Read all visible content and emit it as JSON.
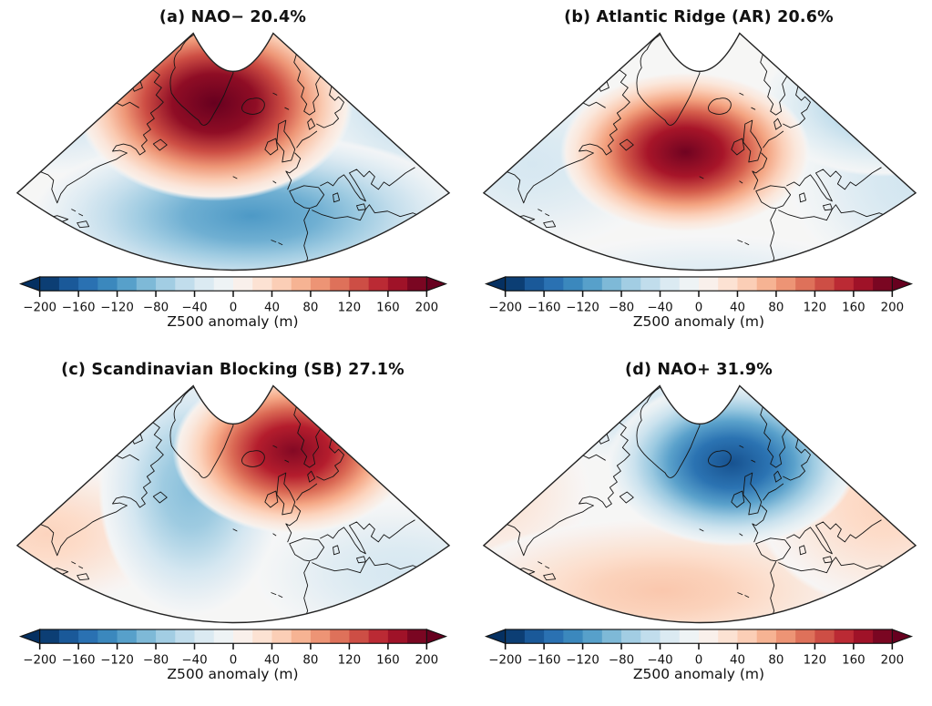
{
  "figure": {
    "background": "#ffffff",
    "colorbar": {
      "label": "Z500 anomaly (m)",
      "range": [
        -200,
        200
      ],
      "n_segments": 20,
      "extend": "both",
      "tick_labels": [
        "−200",
        "−160",
        "−120",
        "−80",
        "−40",
        "0",
        "40",
        "80",
        "120",
        "160",
        "200"
      ],
      "anchor_values": [
        -200,
        -160,
        -120,
        -80,
        -40,
        0,
        40,
        80,
        120,
        160,
        200
      ],
      "anchor_colors": [
        "#053061",
        "#2166ac",
        "#4393c3",
        "#92c5de",
        "#d1e5f0",
        "#f7f7f7",
        "#fddbc7",
        "#f4a582",
        "#d6604d",
        "#b2182b",
        "#67001f"
      ],
      "outline_color": "#111111"
    }
  },
  "chart_data": {
    "type": "heatmap",
    "subtype": "filled-contour map composites, 2x2 grid",
    "field": "Z500 anomaly",
    "units": "m",
    "colormap": "RdBu_r (blue = negative, red = positive)",
    "region": "North Atlantic / Europe conic wedge (E. North America, Greenland, Iceland, Europe, N. Africa)",
    "levels": {
      "min": -200,
      "max": 200,
      "step": 20
    },
    "panels": [
      {
        "id": "a",
        "title": "(a) NAO− 20.4%",
        "regime": "NAO−",
        "frequency_pct": 20.4,
        "centers": [
          {
            "value_m": 30,
            "x": 0.12,
            "y": 0.98,
            "rx": 0.3,
            "ry": 0.25,
            "location": "subtropical W Atlantic"
          },
          {
            "value_m": 35,
            "x": 0.8,
            "y": 0.95,
            "rx": 0.38,
            "ry": 0.3,
            "location": "subtropical E Atlantic / NW Africa"
          },
          {
            "value_m": -45,
            "x": 0.13,
            "y": 0.3,
            "rx": 0.22,
            "ry": 0.3,
            "location": "NE Canada"
          },
          {
            "value_m": -60,
            "x": 0.93,
            "y": 0.28,
            "rx": 0.3,
            "ry": 0.4,
            "location": "Scandinavia / Baltic"
          },
          {
            "value_m": -115,
            "x": 0.54,
            "y": 0.76,
            "rx": 0.48,
            "ry": 0.34,
            "location": "central North Atlantic"
          },
          {
            "value_m": 210,
            "x": 0.46,
            "y": 0.3,
            "rx": 0.3,
            "ry": 0.4,
            "location": "Greenland / Denmark Strait"
          }
        ]
      },
      {
        "id": "b",
        "title": "(b) Atlantic Ridge (AR) 20.6%",
        "regime": "Atlantic Ridge (AR)",
        "frequency_pct": 20.6,
        "centers": [
          {
            "value_m": -35,
            "x": 0.14,
            "y": 0.55,
            "rx": 0.3,
            "ry": 0.35,
            "location": "W Atlantic"
          },
          {
            "value_m": -30,
            "x": 0.52,
            "y": 1.05,
            "rx": 0.4,
            "ry": 0.22,
            "location": "subtropics"
          },
          {
            "value_m": -40,
            "x": 0.97,
            "y": 0.62,
            "rx": 0.28,
            "ry": 0.42,
            "location": "Mediterranean / SE Europe"
          },
          {
            "value_m": -75,
            "x": 0.9,
            "y": 0.3,
            "rx": 0.27,
            "ry": 0.3,
            "location": "Scandinavia / Baltic"
          },
          {
            "value_m": 195,
            "x": 0.47,
            "y": 0.5,
            "rx": 0.27,
            "ry": 0.33,
            "location": "central North Atlantic S of Iceland"
          }
        ]
      },
      {
        "id": "c",
        "title": "(c) Scandinavian Blocking (SB) 27.1%",
        "regime": "Scandinavian Blocking (SB)",
        "frequency_pct": 27.1,
        "centers": [
          {
            "value_m": 45,
            "x": 0.1,
            "y": 0.62,
            "rx": 0.27,
            "ry": 0.3,
            "location": "E North America"
          },
          {
            "value_m": -35,
            "x": 0.86,
            "y": 0.78,
            "rx": 0.32,
            "ry": 0.3,
            "location": "Mediterranean"
          },
          {
            "value_m": -85,
            "x": 0.41,
            "y": 0.44,
            "rx": 0.2,
            "ry": 0.52,
            "location": "Greenland to mid-Atlantic trough"
          },
          {
            "value_m": 185,
            "x": 0.63,
            "y": 0.28,
            "rx": 0.26,
            "ry": 0.34,
            "location": "Scandinavia / North Sea"
          }
        ]
      },
      {
        "id": "d",
        "title": "(d) NAO+ 31.9%",
        "regime": "NAO+",
        "frequency_pct": 31.9,
        "centers": [
          {
            "value_m": 30,
            "x": 0.05,
            "y": 0.45,
            "rx": 0.22,
            "ry": 0.35,
            "location": "W edge"
          },
          {
            "value_m": -40,
            "x": 0.33,
            "y": 0.08,
            "rx": 0.25,
            "ry": 0.25,
            "location": "Baffin / NW corner"
          },
          {
            "value_m": 55,
            "x": 0.42,
            "y": 0.85,
            "rx": 0.46,
            "ry": 0.3,
            "location": "subtropical North Atlantic"
          },
          {
            "value_m": 45,
            "x": 0.9,
            "y": 0.5,
            "rx": 0.28,
            "ry": 0.42,
            "location": "Europe / Mediterranean"
          },
          {
            "value_m": -175,
            "x": 0.57,
            "y": 0.33,
            "rx": 0.27,
            "ry": 0.34,
            "location": "Iceland / Icelandic Low"
          }
        ]
      }
    ]
  }
}
